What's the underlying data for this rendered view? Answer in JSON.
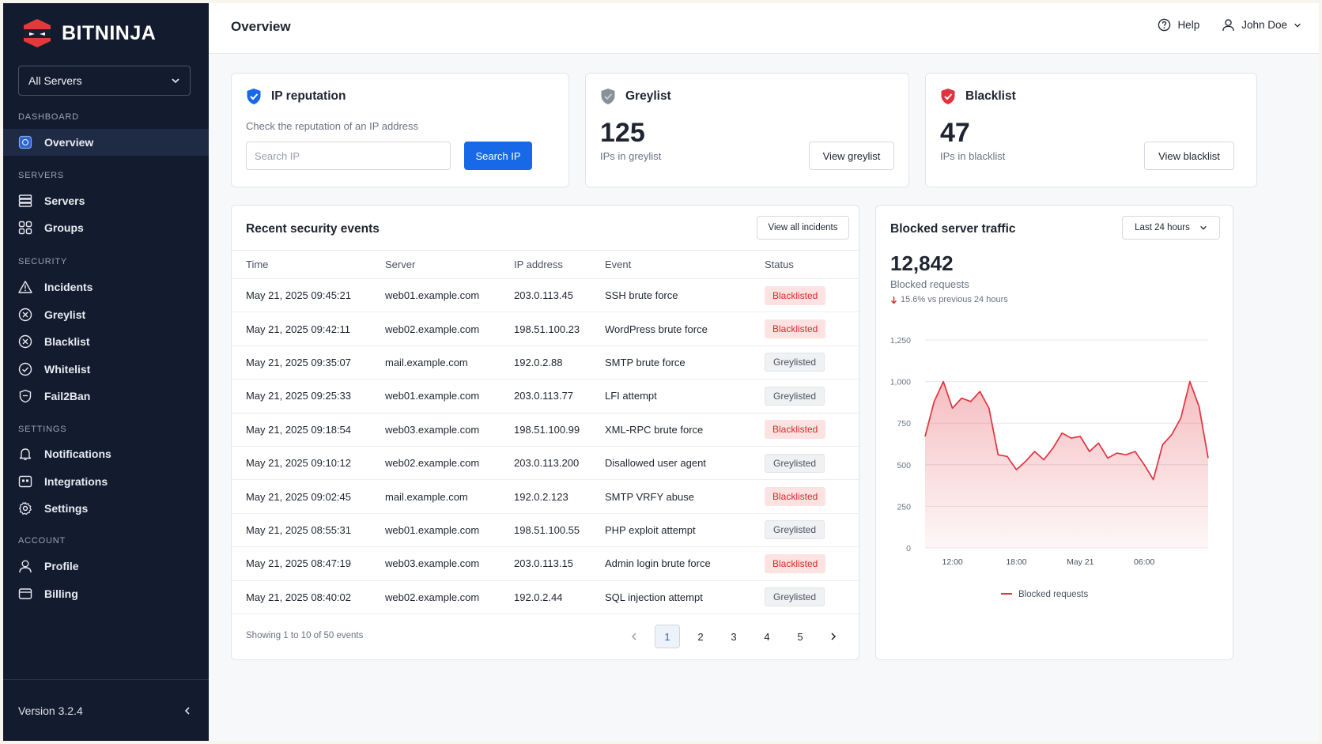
{
  "brand": {
    "name": "BITNINJA"
  },
  "server_select": {
    "value": "All Servers"
  },
  "sidebar": {
    "sections": {
      "dashboard": "DASHBOARD",
      "servers": "SERVERS",
      "security": "SECURITY",
      "settings": "SETTINGS",
      "account": "ACCOUNT"
    },
    "items": {
      "overview": "Overview",
      "servers": "Servers",
      "groups": "Groups",
      "incidents": "Incidents",
      "greylist": "Greylist",
      "blacklist": "Blacklist",
      "whitelist": "Whitelist",
      "fail2ban": "Fail2Ban",
      "notifications": "Notifications",
      "integrations": "Integrations",
      "settings": "Settings",
      "profile": "Profile",
      "billing": "Billing"
    },
    "version": "Version 3.2.4"
  },
  "header": {
    "title": "Overview",
    "help": "Help",
    "user": "John Doe"
  },
  "ip_reputation": {
    "title": "IP reputation",
    "subtitle": "Check the reputation of an IP address",
    "placeholder": "Search IP",
    "button": "Search IP"
  },
  "greylist_card": {
    "title": "Greylist",
    "count": "125",
    "label": "IPs in greylist",
    "button": "View greylist"
  },
  "blacklist_card": {
    "title": "Blacklist",
    "count": "47",
    "label": "IPs in blacklist",
    "button": "View blacklist"
  },
  "events": {
    "title": "Recent security events",
    "view_all": "View all incidents",
    "columns": [
      "Time",
      "Server",
      "IP address",
      "Event",
      "Status"
    ],
    "rows": [
      {
        "time": "May 21, 2025 09:45:21",
        "server": "web01.example.com",
        "ip": "203.0.113.45",
        "event": "SSH brute force",
        "status": "Blacklisted"
      },
      {
        "time": "May 21, 2025 09:42:11",
        "server": "web02.example.com",
        "ip": "198.51.100.23",
        "event": "WordPress brute force",
        "status": "Blacklisted"
      },
      {
        "time": "May 21, 2025 09:35:07",
        "server": "mail.example.com",
        "ip": "192.0.2.88",
        "event": "SMTP brute force",
        "status": "Greylisted"
      },
      {
        "time": "May 21, 2025 09:25:33",
        "server": "web01.example.com",
        "ip": "203.0.113.77",
        "event": "LFI attempt",
        "status": "Greylisted"
      },
      {
        "time": "May 21, 2025 09:18:54",
        "server": "web03.example.com",
        "ip": "198.51.100.99",
        "event": "XML-RPC brute force",
        "status": "Blacklisted"
      },
      {
        "time": "May 21, 2025 09:10:12",
        "server": "web02.example.com",
        "ip": "203.0.113.200",
        "event": "Disallowed user agent",
        "status": "Greylisted"
      },
      {
        "time": "May 21, 2025 09:02:45",
        "server": "mail.example.com",
        "ip": "192.0.2.123",
        "event": "SMTP VRFY abuse",
        "status": "Blacklisted"
      },
      {
        "time": "May 21, 2025 08:55:31",
        "server": "web01.example.com",
        "ip": "198.51.100.55",
        "event": "PHP exploit attempt",
        "status": "Greylisted"
      },
      {
        "time": "May 21, 2025 08:47:19",
        "server": "web03.example.com",
        "ip": "203.0.113.15",
        "event": "Admin login brute force",
        "status": "Blacklisted"
      },
      {
        "time": "May 21, 2025 08:40:02",
        "server": "web02.example.com",
        "ip": "192.0.2.44",
        "event": "SQL injection attempt",
        "status": "Greylisted"
      }
    ],
    "footer": "Showing 1 to 10 of 50 events",
    "pages": [
      "1",
      "2",
      "3",
      "4",
      "5"
    ]
  },
  "traffic": {
    "title": "Blocked server traffic",
    "range": "Last 24 hours",
    "total": "12,842",
    "total_label": "Blocked requests",
    "change": "15.6% vs previous 24 hours"
  },
  "colors": {
    "sidebar_bg": "#131c2f",
    "primary": "#1769e8",
    "danger": "#d42a2a",
    "series": "#e0333d"
  },
  "chart_data": {
    "type": "area",
    "title": "Blocked server traffic",
    "ylim": [
      0,
      1250
    ],
    "yticks": [
      0,
      250,
      500,
      750,
      1000,
      1250
    ],
    "x_tick_labels": [
      "12:00",
      "18:00",
      "May 21",
      "06:00"
    ],
    "x_tick_positions": [
      3,
      10,
      17,
      24
    ],
    "series": [
      {
        "name": "Blocked requests",
        "values": [
          670,
          880,
          1000,
          840,
          900,
          880,
          940,
          840,
          560,
          550,
          470,
          520,
          580,
          530,
          600,
          690,
          660,
          670,
          580,
          630,
          540,
          570,
          560,
          580,
          500,
          410,
          620,
          680,
          780,
          1000,
          850,
          540
        ]
      }
    ],
    "legend": "bottom",
    "grid": true
  }
}
